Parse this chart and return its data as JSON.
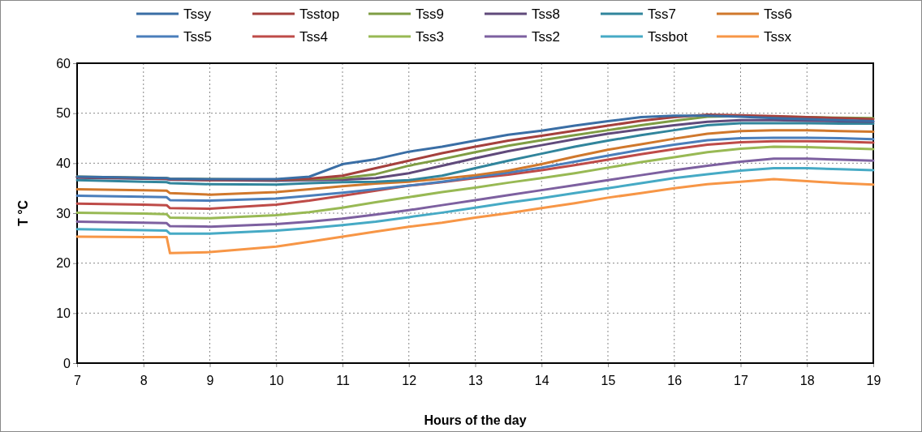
{
  "chart_data": {
    "type": "line",
    "xlabel": "Hours of the day",
    "ylabel": "T °C",
    "x": [
      7,
      8,
      8.35,
      8.4,
      9,
      10,
      10.5,
      11,
      11.5,
      12,
      12.5,
      13,
      13.5,
      14,
      14.5,
      15,
      15.5,
      16,
      16.5,
      17,
      17.5,
      18,
      18.5,
      19
    ],
    "xlim": [
      7,
      19
    ],
    "xticks": [
      7,
      8,
      9,
      10,
      11,
      12,
      13,
      14,
      15,
      16,
      17,
      18,
      19
    ],
    "ylim": [
      0,
      60
    ],
    "yticks": [
      0,
      10,
      20,
      30,
      40,
      50,
      60
    ],
    "grid": true,
    "legend": "top",
    "marker": "none",
    "line_style": "solid",
    "series": [
      {
        "name": "Tssy",
        "color": "#3a6ea5",
        "values": [
          37.3,
          37.1,
          37,
          36.9,
          36.8,
          36.8,
          37.3,
          39.8,
          40.8,
          42.3,
          43.3,
          44.5,
          45.7,
          46.5,
          47.5,
          48.4,
          49.2,
          49.5,
          49.5,
          49.3,
          49,
          48.8,
          48.6,
          48.4
        ]
      },
      {
        "name": "Tsstop",
        "color": "#a5403d",
        "values": [
          37.2,
          37,
          36.9,
          36.8,
          36.6,
          36.7,
          36.9,
          37.5,
          39,
          40.5,
          42,
          43.3,
          44.5,
          45.5,
          46.5,
          47.5,
          48.5,
          49.2,
          49.7,
          49.6,
          49.4,
          49.2,
          49,
          48.8
        ]
      },
      {
        "name": "Tss9",
        "color": "#7f9d44",
        "values": [
          37.3,
          37.1,
          37,
          36.9,
          36.8,
          36.7,
          36.8,
          37,
          37.8,
          39.5,
          40.8,
          42.2,
          43.5,
          44.6,
          45.6,
          46.6,
          47.6,
          48.5,
          49.3,
          49.4,
          49.3,
          49.2,
          49.1,
          49
        ]
      },
      {
        "name": "Tss8",
        "color": "#604a7b",
        "values": [
          37.1,
          36.9,
          36.8,
          36.7,
          36.6,
          36.5,
          36.6,
          36.7,
          37,
          38,
          39.5,
          41,
          42.4,
          43.6,
          44.8,
          45.9,
          46.8,
          47.6,
          48.3,
          48.6,
          48.6,
          48.5,
          48.4,
          48.3
        ]
      },
      {
        "name": "Tss7",
        "color": "#31859c",
        "values": [
          36.6,
          36.3,
          36.2,
          36,
          35.8,
          35.7,
          36,
          36.2,
          36.3,
          36.6,
          37.5,
          39,
          40.5,
          41.9,
          43.3,
          44.5,
          45.6,
          46.6,
          47.6,
          48,
          48,
          48,
          47.9,
          47.9
        ]
      },
      {
        "name": "Tss6",
        "color": "#d0782c",
        "values": [
          34.8,
          34.6,
          34.5,
          34,
          33.7,
          34.2,
          34.8,
          35.4,
          35.9,
          36.3,
          36.9,
          37.6,
          38.5,
          39.8,
          41.3,
          42.7,
          43.8,
          44.9,
          45.9,
          46.4,
          46.6,
          46.6,
          46.4,
          46.3
        ]
      },
      {
        "name": "Tss5",
        "color": "#4a7ebb",
        "values": [
          33.5,
          33.3,
          33.2,
          32.6,
          32.5,
          32.9,
          33.5,
          34.1,
          34.8,
          35.5,
          36.3,
          37.2,
          38.1,
          39.1,
          40.3,
          41.5,
          42.7,
          43.7,
          44.6,
          45,
          45.1,
          45.1,
          45,
          44.8
        ]
      },
      {
        "name": "Tss4",
        "color": "#be4b48",
        "values": [
          31.9,
          31.7,
          31.6,
          31,
          30.9,
          31.7,
          32.5,
          33.5,
          34.5,
          35.5,
          36.2,
          37,
          37.7,
          38.6,
          39.6,
          40.7,
          41.8,
          42.8,
          43.7,
          44.2,
          44.4,
          44.4,
          44.3,
          44.1
        ]
      },
      {
        "name": "Tss3",
        "color": "#98b954",
        "values": [
          30.1,
          29.9,
          29.8,
          29.1,
          29,
          29.6,
          30.2,
          31.1,
          32.2,
          33.2,
          34.2,
          35.1,
          36.1,
          37,
          38,
          39.1,
          40.2,
          41.2,
          42.2,
          42.9,
          43.3,
          43.2,
          43,
          42.8
        ]
      },
      {
        "name": "Tss2",
        "color": "#7d60a0",
        "values": [
          28.3,
          28.1,
          28,
          27.4,
          27.3,
          27.8,
          28.3,
          28.9,
          29.7,
          30.6,
          31.6,
          32.6,
          33.6,
          34.6,
          35.6,
          36.6,
          37.6,
          38.6,
          39.5,
          40.3,
          40.9,
          40.9,
          40.7,
          40.5
        ]
      },
      {
        "name": "Tssbot",
        "color": "#46aac5",
        "values": [
          26.8,
          26.6,
          26.5,
          25.9,
          25.9,
          26.5,
          27,
          27.6,
          28.3,
          29.2,
          30.1,
          31.1,
          32.1,
          33,
          34,
          35,
          36,
          37,
          37.8,
          38.5,
          39,
          39,
          38.8,
          38.6
        ]
      },
      {
        "name": "Tssx",
        "color": "#f79646",
        "values": [
          25.3,
          25.2,
          25.2,
          22,
          22.2,
          23.3,
          24.3,
          25.3,
          26.3,
          27.3,
          28.1,
          29.1,
          30,
          31,
          32,
          33.1,
          34,
          35,
          35.8,
          36.3,
          36.8,
          36.4,
          36,
          35.7
        ]
      }
    ]
  }
}
